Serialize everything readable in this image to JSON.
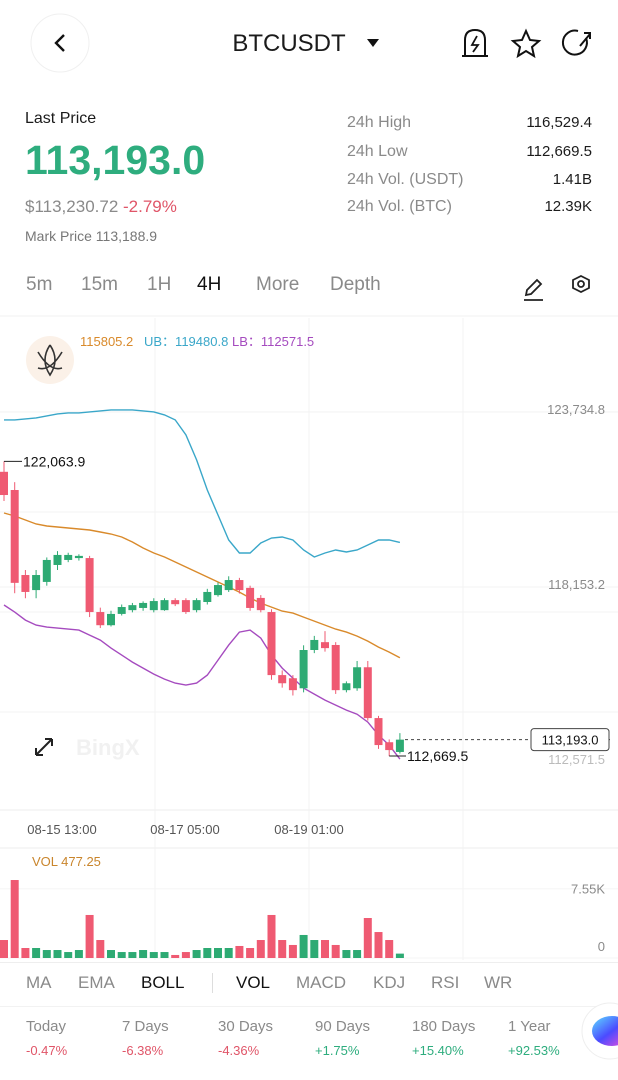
{
  "header": {
    "symbol": "BTCUSDT"
  },
  "price": {
    "label": "Last Price",
    "last": "113,193.0",
    "usd": "$113,230.72",
    "change": "-2.79%",
    "mark": "Mark Price 113,188.9"
  },
  "stats": [
    [
      "24h High",
      "116,529.4"
    ],
    [
      "24h Low",
      "112,669.5"
    ],
    [
      "24h Vol. (USDT)",
      "1.41B"
    ],
    [
      "24h Vol. (BTC)",
      "12.39K"
    ]
  ],
  "timeframes": [
    "5m",
    "15m",
    "1H",
    "4H",
    "More",
    "Depth"
  ],
  "chart_data": {
    "type": "candlestick",
    "ylim": [
      110950,
      126250
    ],
    "yticks": [
      {
        "value": 123734.8,
        "label": "123,734.8"
      },
      {
        "value": 118153.2,
        "label": "118,153.2"
      }
    ],
    "up_color": "#2daa73",
    "down_color": "#ef5a72",
    "candles": [
      {
        "o": 121730,
        "c": 120990,
        "h": 122063.9,
        "l": 120800
      },
      {
        "o": 121150,
        "c": 118190,
        "h": 121400,
        "l": 117860
      },
      {
        "o": 118440,
        "c": 117900,
        "h": 118600,
        "l": 117700
      },
      {
        "o": 117960,
        "c": 118440,
        "h": 118600,
        "l": 117700
      },
      {
        "o": 118220,
        "c": 118920,
        "h": 119000,
        "l": 118100
      },
      {
        "o": 118760,
        "c": 119080,
        "h": 119200,
        "l": 118600
      },
      {
        "o": 118920,
        "c": 119080,
        "h": 119150,
        "l": 118850
      },
      {
        "o": 118980,
        "c": 119050,
        "h": 119100,
        "l": 118900
      },
      {
        "o": 118980,
        "c": 117260,
        "h": 119050,
        "l": 117100
      },
      {
        "o": 117260,
        "c": 116840,
        "h": 117400,
        "l": 116750
      },
      {
        "o": 116840,
        "c": 117200,
        "h": 117300,
        "l": 116800
      },
      {
        "o": 117200,
        "c": 117420,
        "h": 117500,
        "l": 117150
      },
      {
        "o": 117320,
        "c": 117480,
        "h": 117550,
        "l": 117250
      },
      {
        "o": 117390,
        "c": 117550,
        "h": 117600,
        "l": 117300
      },
      {
        "o": 117320,
        "c": 117610,
        "h": 117700,
        "l": 117250
      },
      {
        "o": 117320,
        "c": 117640,
        "h": 117700,
        "l": 117300
      },
      {
        "o": 117640,
        "c": 117510,
        "h": 117700,
        "l": 117450
      },
      {
        "o": 117640,
        "c": 117260,
        "h": 117700,
        "l": 117200
      },
      {
        "o": 117320,
        "c": 117640,
        "h": 117700,
        "l": 117250
      },
      {
        "o": 117580,
        "c": 117900,
        "h": 118000,
        "l": 117500
      },
      {
        "o": 117800,
        "c": 118120,
        "h": 118200,
        "l": 117750
      },
      {
        "o": 117960,
        "c": 118280,
        "h": 118400,
        "l": 117900
      },
      {
        "o": 118280,
        "c": 117960,
        "h": 118350,
        "l": 117850
      },
      {
        "o": 118030,
        "c": 117390,
        "h": 118100,
        "l": 117300
      },
      {
        "o": 117710,
        "c": 117320,
        "h": 117800,
        "l": 117250
      },
      {
        "o": 117260,
        "c": 115250,
        "h": 117350,
        "l": 115100
      },
      {
        "o": 115250,
        "c": 114990,
        "h": 115400,
        "l": 114850
      },
      {
        "o": 115150,
        "c": 114770,
        "h": 115250,
        "l": 114600
      },
      {
        "o": 114830,
        "c": 116050,
        "h": 116200,
        "l": 114700
      },
      {
        "o": 116050,
        "c": 116370,
        "h": 116500,
        "l": 115950
      },
      {
        "o": 116300,
        "c": 116110,
        "h": 116650,
        "l": 116000
      },
      {
        "o": 116210,
        "c": 114770,
        "h": 116300,
        "l": 114650
      },
      {
        "o": 114770,
        "c": 114990,
        "h": 115050,
        "l": 114700
      },
      {
        "o": 114830,
        "c": 115500,
        "h": 115700,
        "l": 114750
      },
      {
        "o": 115500,
        "c": 113880,
        "h": 115700,
        "l": 113800
      },
      {
        "o": 113880,
        "c": 113020,
        "h": 113950,
        "l": 112900
      },
      {
        "o": 113110,
        "c": 112860,
        "h": 113200,
        "l": 112669.5
      },
      {
        "o": 112800,
        "c": 113193,
        "h": 113400,
        "l": 112750
      }
    ],
    "boll": [
      {
        "label": "115805.2",
        "color": "#d98a2b",
        "values": [
          120418,
          120322,
          120194,
          120067,
          120003,
          119971,
          119939,
          119907,
          119875,
          119812,
          119748,
          119652,
          119493,
          119301,
          119142,
          119014,
          118855,
          118695,
          118536,
          118376,
          118217,
          118057,
          117897,
          117706,
          117546,
          117419,
          117291,
          117227,
          117100,
          116972,
          116844,
          116717,
          116621,
          116494,
          116334,
          116143,
          115984,
          115805.2
        ]
      },
      {
        "label": "UB：119480.8",
        "color": "#3aa7c9",
        "values": [
          123384,
          123384,
          123416,
          123448,
          123512,
          123576,
          123607,
          123607,
          123639,
          123671,
          123703,
          123703,
          123703,
          123671,
          123639,
          123544,
          123384,
          122906,
          122108,
          121151,
          120354,
          119556,
          119142,
          119142,
          119461,
          119620,
          119652,
          119556,
          119237,
          119014,
          119142,
          119237,
          119174,
          119237,
          119397,
          119556,
          119556,
          119480.8
        ]
      },
      {
        "label": "LB：112571.5",
        "color": "#a54bbf",
        "values": [
          117483,
          117259,
          117004,
          116844,
          116781,
          116749,
          116717,
          116685,
          116526,
          116366,
          116111,
          115888,
          115665,
          115473,
          115282,
          115122,
          114994,
          114930,
          114994,
          115249,
          115728,
          116207,
          116621,
          116685,
          116430,
          115888,
          115473,
          115154,
          114834,
          114643,
          114452,
          114293,
          114133,
          114005,
          113751,
          113336,
          113017,
          112571.5
        ]
      }
    ],
    "annotations": {
      "high": {
        "value": 122063.9,
        "label": "122,063.9"
      },
      "low": {
        "value": 112669.5,
        "label": "112,669.5"
      },
      "last": {
        "value": 113193,
        "label": "113,193.0"
      },
      "lb": {
        "value": 112571.5,
        "label": "112,571.5"
      }
    },
    "x_labels": [
      "08-15 13:00",
      "08-17 05:00",
      "08-19 01:00"
    ],
    "watermark": "BingX"
  },
  "volume": {
    "label": "VOL 477.25",
    "ylim": [
      0,
      9592
    ],
    "yticks": [
      {
        "value": 7550,
        "label": "7.55K"
      },
      0
    ],
    "values": [
      1960,
      8500,
      1090,
      1090,
      870,
      870,
      650,
      870,
      4690,
      1960,
      870,
      650,
      650,
      870,
      650,
      650,
      330,
      650,
      870,
      1090,
      1090,
      1090,
      1310,
      1090,
      1960,
      4690,
      1960,
      1420,
      2510,
      1960,
      1960,
      1420,
      870,
      870,
      4360,
      2830,
      1960,
      477.25
    ]
  },
  "indicators": [
    "MA",
    "EMA",
    "BOLL",
    "VOL",
    "MACD",
    "KDJ",
    "RSI",
    "WR"
  ],
  "performance": [
    {
      "period": "Today",
      "change": "-0.47%"
    },
    {
      "period": "7 Days",
      "change": "-6.38%"
    },
    {
      "period": "30 Days",
      "change": "-4.36%"
    },
    {
      "period": "90 Days",
      "change": "+1.75%"
    },
    {
      "period": "180 Days",
      "change": "+15.40%"
    },
    {
      "period": "1 Year",
      "change": "+92.53%"
    }
  ]
}
